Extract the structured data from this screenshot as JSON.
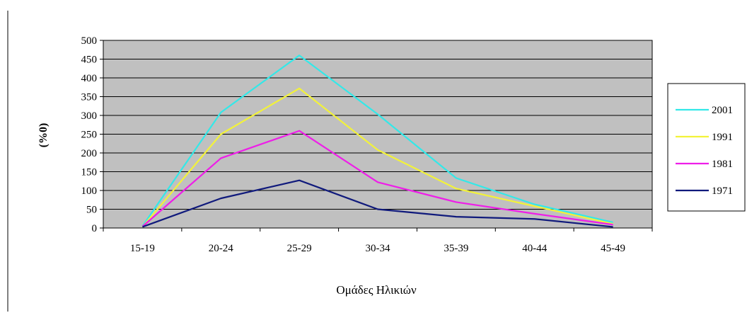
{
  "chart_data": {
    "type": "line",
    "title": "",
    "xlabel": "Ομάδες Ηλικιών",
    "ylabel": "(%0)",
    "categories": [
      "15-19",
      "20-24",
      "25-29",
      "30-34",
      "35-39",
      "40-44",
      "45-49"
    ],
    "ylim": [
      0,
      500
    ],
    "yticks": [
      0,
      50,
      100,
      150,
      200,
      250,
      300,
      350,
      400,
      450,
      500
    ],
    "grid": true,
    "legend_position": "right",
    "series": [
      {
        "name": "2001",
        "color": "#33e8e8",
        "values": [
          5,
          308,
          460,
          303,
          133,
          63,
          15
        ]
      },
      {
        "name": "1991",
        "color": "#f2f23a",
        "values": [
          3,
          250,
          372,
          208,
          105,
          58,
          11
        ]
      },
      {
        "name": "1981",
        "color": "#ee1ee8",
        "values": [
          4,
          186,
          259,
          122,
          69,
          38,
          9
        ]
      },
      {
        "name": "1971",
        "color": "#101a7c",
        "values": [
          3,
          79,
          127,
          50,
          30,
          24,
          3
        ]
      }
    ]
  },
  "colors": {
    "plot_background": "#c0c0c0",
    "gridline": "#000000"
  }
}
